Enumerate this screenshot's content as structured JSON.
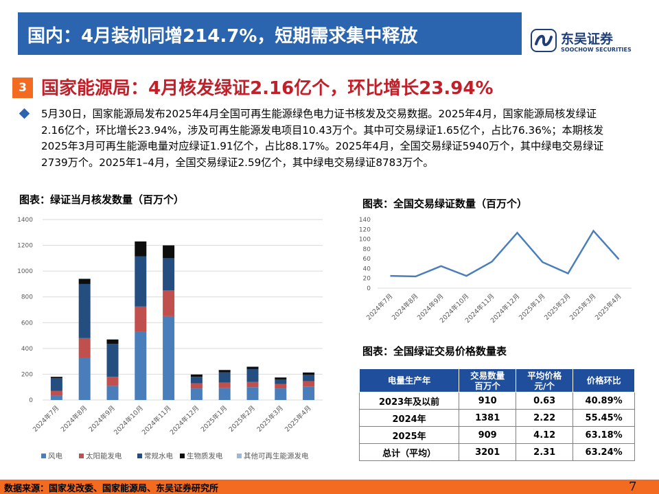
{
  "header": {
    "title": "国内：4月装机同增214.7%，短期需求集中释放"
  },
  "logo": {
    "cn": "东吴证券",
    "en": "SOOCHOW SECURITIES"
  },
  "section": {
    "number": "3",
    "title": "国家能源局：4月核发绿证2.16亿个，环比增长23.94%"
  },
  "paragraph": "5月30日，国家能源局发布2025年4月全国可再生能源绿色电力证书核发及交易数据。2025年4月，国家能源局核发绿证2.16亿个，环比增长23.94%，涉及可再生能源发电项目10.43万个。其中可交易绿证1.65亿个，占比76.36%；本期核发2025年3月可再生能源电量对应绿证1.91亿个，占比88.17%。2025年4月，全国交易绿证5940万个，其中绿电交易绿证2739万个。2025年1–4月，全国交易绿证2.59亿个，其中绿电交易绿证8783万个。",
  "figure1": {
    "title": "图表：绿证当月核发数量（百万个）"
  },
  "figure2": {
    "title": "图表：全国交易绿证数量（百万个）"
  },
  "figure3": {
    "title": "图表：全国绿证交易价格数量表"
  },
  "chart_data": [
    {
      "type": "bar",
      "stacked": true,
      "categories": [
        "2024年7月",
        "2024年8月",
        "2024年9月",
        "2024年10月",
        "2024年11月",
        "2024年12月",
        "2025年1月",
        "2025年2月",
        "2025年3月",
        "2025年4月"
      ],
      "series": [
        {
          "name": "风电",
          "color": "#4a7ebb",
          "values": [
            35,
            330,
            110,
            530,
            650,
            90,
            95,
            100,
            90,
            105
          ]
        },
        {
          "name": "太阳能发电",
          "color": "#c0504d",
          "values": [
            35,
            150,
            70,
            195,
            200,
            40,
            40,
            40,
            35,
            40
          ]
        },
        {
          "name": "常规水电",
          "color": "#254e80",
          "values": [
            100,
            420,
            255,
            390,
            250,
            50,
            80,
            100,
            35,
            50
          ]
        },
        {
          "name": "生物质发电",
          "color": "#0d0d0d",
          "values": [
            10,
            40,
            35,
            115,
            100,
            18,
            18,
            18,
            15,
            18
          ]
        },
        {
          "name": "其他可再生能源发电",
          "color": "#9bb7e0",
          "values": [
            1,
            1,
            1,
            1,
            1,
            1,
            1,
            1,
            1,
            1
          ]
        }
      ],
      "ylim": [
        0,
        1400
      ],
      "yticks": [
        0,
        200,
        400,
        600,
        800,
        1000,
        1200,
        1400
      ],
      "legend": "bottom",
      "grid": true
    },
    {
      "type": "line",
      "categories": [
        "2024年7月",
        "2024年8月",
        "2024年9月",
        "2024年10月",
        "2024年11月",
        "2024年12月",
        "2025年1月",
        "2025年2月",
        "2025年3月",
        "2025年4月"
      ],
      "series": [
        {
          "color": "#4a7ebb",
          "values": [
            25,
            24,
            45,
            25,
            54,
            113,
            53,
            30,
            117,
            59
          ]
        }
      ],
      "ylim": [
        0,
        140
      ],
      "yticks": [
        0,
        20,
        40,
        60,
        80,
        100,
        120,
        140
      ],
      "grid": false
    }
  ],
  "table": {
    "headers": [
      [
        "电量生产年"
      ],
      [
        "交易数量",
        "百万个"
      ],
      [
        "平均价格",
        "元/个"
      ],
      [
        "价格环比"
      ]
    ],
    "rows": [
      [
        "2023年及以前",
        "910",
        "0.63",
        "40.89%"
      ],
      [
        "2024年",
        "1381",
        "2.22",
        "55.45%"
      ],
      [
        "2025年",
        "909",
        "4.12",
        "63.18%"
      ],
      [
        "总计（平均）",
        "3201",
        "2.31",
        "63.24%"
      ]
    ]
  },
  "footer": {
    "source": "数据来源：国家发改委、国家能源局、东吴证券研究所",
    "page": "7"
  }
}
